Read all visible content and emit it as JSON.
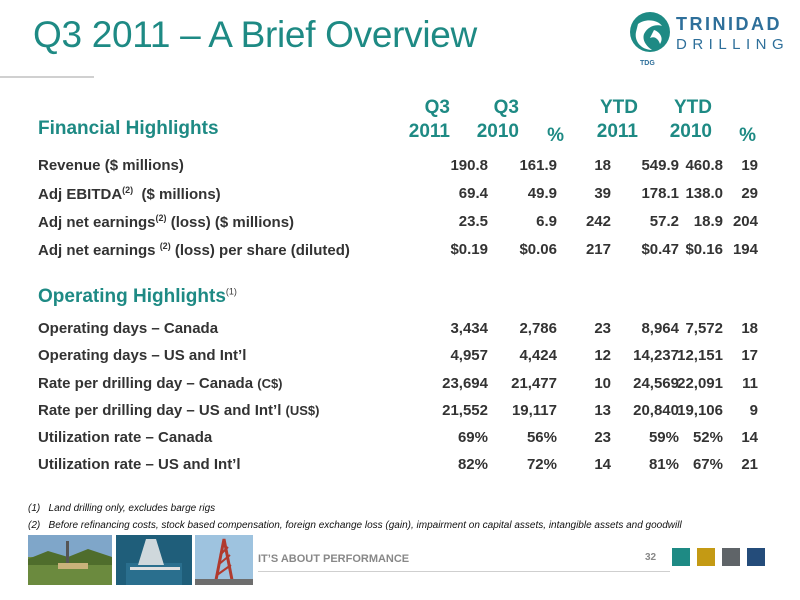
{
  "title": "Q3 2011 – A Brief Overview",
  "logo": {
    "line1": "TRINIDAD",
    "line2": "DRILLING",
    "tag": "TDG"
  },
  "financial": {
    "section_title": "Financial Highlights",
    "headers": {
      "q3_2011": [
        "Q3",
        "2011"
      ],
      "q3_2010": [
        "Q3",
        "2010"
      ],
      "pct1": "%",
      "ytd_2011": [
        "YTD",
        "2011"
      ],
      "ytd_2010": [
        "YTD",
        "2010"
      ],
      "pct2": "%"
    },
    "rows": [
      {
        "label": "Revenue ($ millions)",
        "v": [
          "190.8",
          "161.9",
          "18",
          "549.9",
          "460.8",
          "19"
        ]
      },
      {
        "label": "Adj EBITDA",
        "sup": "(2)",
        "suffix": "  ($ millions)",
        "v": [
          "69.4",
          "49.9",
          "39",
          "178.1",
          "138.0",
          "29"
        ]
      },
      {
        "label": "Adj net earnings",
        "sup": "(2)",
        "suffix": " (loss) ($ millions)",
        "v": [
          "23.5",
          "6.9",
          "242",
          "57.2",
          "18.9",
          "204"
        ]
      },
      {
        "label": "Adj net earnings ",
        "sup": "(2)",
        "suffix": " (loss) per share (diluted)",
        "v": [
          "$0.19",
          "$0.06",
          "217",
          "$0.47",
          "$0.16",
          "194"
        ]
      }
    ]
  },
  "operating": {
    "section_title": "Operating Highlights",
    "section_sup": "(1)",
    "rows": [
      {
        "label": "Operating days – Canada",
        "v": [
          "3,434",
          "2,786",
          "23",
          "8,964",
          "7,572",
          "18"
        ]
      },
      {
        "label": "Operating days – US and Int’l",
        "v": [
          "4,957",
          "4,424",
          "12",
          "14,237",
          "12,151",
          "17"
        ]
      },
      {
        "label": "Rate per drilling day – Canada ",
        "small": "(C$)",
        "v": [
          "23,694",
          "21,477",
          "10",
          "24,569",
          "22,091",
          "11"
        ]
      },
      {
        "label": "Rate per drilling day – US and Int’l ",
        "small": "(US$)",
        "v": [
          "21,552",
          "19,117",
          "13",
          "20,840",
          "19,106",
          "9"
        ]
      },
      {
        "label": "Utilization rate – Canada",
        "v": [
          "69%",
          "56%",
          "23",
          "59%",
          "52%",
          "14"
        ]
      },
      {
        "label": "Utilization rate – US and Int’l",
        "v": [
          "82%",
          "72%",
          "14",
          "81%",
          "67%",
          "21"
        ]
      }
    ]
  },
  "footnotes": [
    "(1)   Land drilling only, excludes barge rigs",
    "(2)   Before refinancing costs, stock based compensation, foreign exchange loss (gain), impairment on capital assets, intangible assets and goodwill"
  ],
  "footer": {
    "tagline": "IT’S ABOUT PERFORMANCE",
    "page": "32",
    "square_colors": [
      "#1e8a84",
      "#c49a14",
      "#5f6468",
      "#244c7a"
    ]
  },
  "colors": {
    "accent": "#1e8a84",
    "text": "#333333"
  }
}
